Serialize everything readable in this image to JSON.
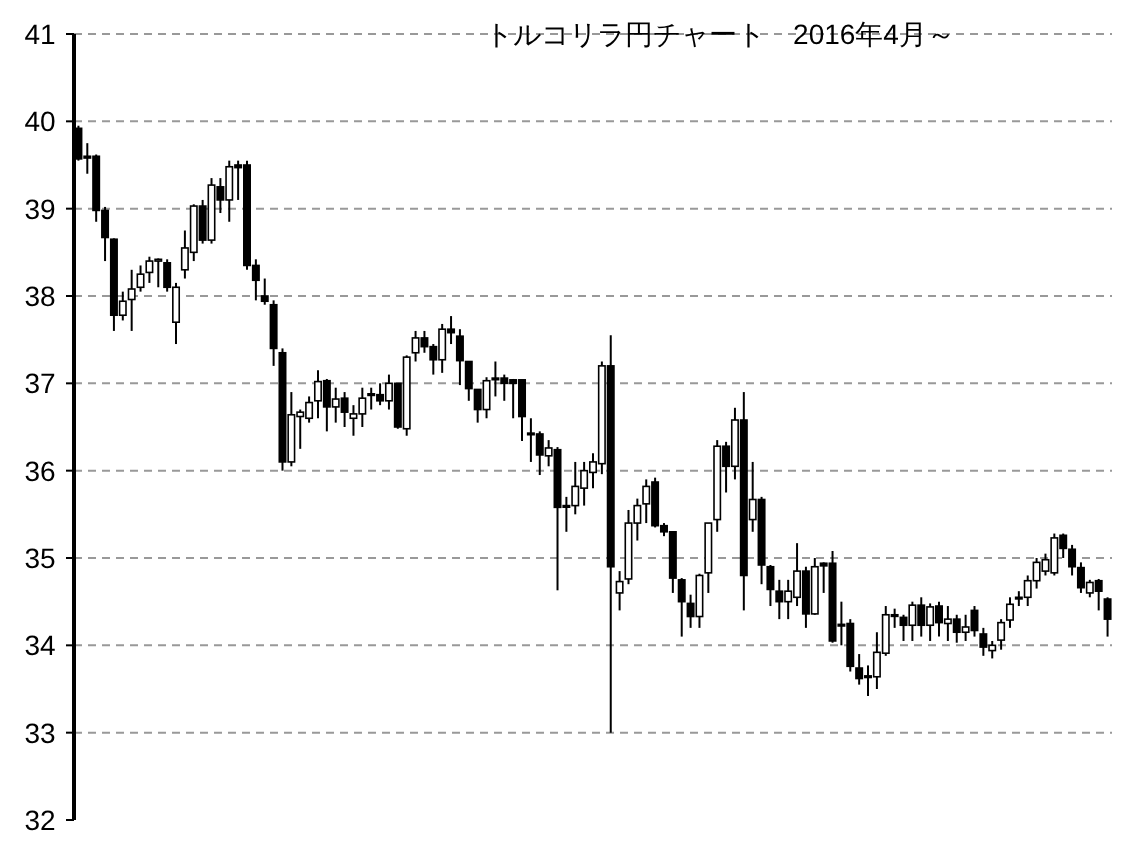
{
  "chart_data": {
    "type": "candlestick",
    "title": "トルコリラ円チャート　2016年4月～",
    "categories": [
      null,
      null,
      null,
      null,
      null,
      null,
      null,
      null,
      null,
      null,
      null,
      null,
      null,
      null,
      null,
      null,
      null,
      null,
      null,
      null,
      null,
      null,
      null,
      null,
      null,
      null,
      null,
      null,
      null,
      null,
      null,
      null,
      null,
      null,
      null,
      null,
      null,
      null,
      null,
      null,
      null,
      null,
      null,
      null,
      null,
      null,
      null,
      null,
      null,
      null,
      null,
      null,
      null,
      null,
      null,
      null,
      null,
      null,
      null,
      null,
      null,
      null,
      null,
      null,
      null,
      null,
      null,
      null,
      null,
      null,
      null,
      null,
      null,
      null,
      null,
      null,
      null,
      null,
      null,
      null,
      null,
      null,
      null,
      null,
      null,
      null,
      null,
      null,
      null,
      null,
      null,
      null,
      null,
      null,
      null,
      null,
      null,
      null,
      null,
      null,
      null,
      null,
      null,
      null,
      null,
      null,
      null,
      null,
      null,
      null,
      null,
      null,
      null,
      null,
      null,
      null,
      null
    ],
    "ohlc": [
      [
        39.92,
        39.95,
        39.55,
        39.57
      ],
      [
        39.6,
        39.75,
        39.4,
        39.58
      ],
      [
        39.6,
        39.62,
        38.85,
        38.98
      ],
      [
        38.98,
        39.02,
        38.4,
        38.67
      ],
      [
        38.65,
        38.66,
        37.6,
        37.78
      ],
      [
        37.78,
        38.05,
        37.72,
        37.94
      ],
      [
        37.96,
        38.3,
        37.6,
        38.08
      ],
      [
        38.1,
        38.35,
        38.05,
        38.25
      ],
      [
        38.27,
        38.45,
        38.15,
        38.4
      ],
      [
        38.4,
        38.43,
        38.1,
        38.42
      ],
      [
        38.38,
        38.42,
        38.05,
        38.1
      ],
      [
        37.7,
        38.15,
        37.45,
        38.1
      ],
      [
        38.3,
        38.75,
        38.2,
        38.55
      ],
      [
        38.5,
        39.05,
        38.4,
        39.03
      ],
      [
        39.03,
        39.1,
        38.6,
        38.64
      ],
      [
        38.64,
        39.35,
        38.6,
        39.27
      ],
      [
        39.25,
        39.35,
        38.95,
        39.1
      ],
      [
        39.1,
        39.55,
        38.85,
        39.48
      ],
      [
        39.5,
        39.55,
        39.1,
        39.47
      ],
      [
        39.5,
        39.55,
        38.3,
        38.35
      ],
      [
        38.35,
        38.42,
        37.95,
        38.18
      ],
      [
        38.0,
        38.2,
        37.9,
        37.94
      ],
      [
        37.9,
        37.95,
        37.2,
        37.4
      ],
      [
        37.35,
        37.4,
        36.0,
        36.1
      ],
      [
        36.1,
        36.9,
        36.05,
        36.64
      ],
      [
        36.62,
        36.7,
        36.25,
        36.67
      ],
      [
        36.6,
        36.85,
        36.55,
        36.78
      ],
      [
        36.8,
        37.15,
        36.6,
        37.02
      ],
      [
        37.03,
        37.05,
        36.45,
        36.73
      ],
      [
        36.73,
        36.95,
        36.55,
        36.82
      ],
      [
        36.83,
        36.9,
        36.5,
        36.67
      ],
      [
        36.6,
        36.75,
        36.4,
        36.65
      ],
      [
        36.65,
        36.95,
        36.5,
        36.83
      ],
      [
        36.87,
        36.95,
        36.7,
        36.88
      ],
      [
        36.87,
        37.0,
        36.75,
        36.8
      ],
      [
        36.8,
        37.1,
        36.7,
        37.0
      ],
      [
        37.0,
        37.0,
        36.48,
        36.5
      ],
      [
        36.48,
        37.32,
        36.4,
        37.3
      ],
      [
        37.35,
        37.6,
        37.25,
        37.52
      ],
      [
        37.52,
        37.6,
        37.35,
        37.42
      ],
      [
        37.42,
        37.45,
        37.1,
        37.27
      ],
      [
        37.27,
        37.68,
        37.12,
        37.62
      ],
      [
        37.62,
        37.77,
        37.45,
        37.58
      ],
      [
        37.54,
        37.62,
        36.98,
        37.26
      ],
      [
        37.25,
        37.25,
        36.8,
        36.94
      ],
      [
        36.93,
        36.93,
        36.55,
        36.7
      ],
      [
        36.7,
        37.07,
        36.6,
        37.03
      ],
      [
        37.05,
        37.25,
        36.85,
        37.06
      ],
      [
        37.06,
        37.1,
        36.8,
        37.0
      ],
      [
        37.04,
        37.05,
        36.6,
        37.0
      ],
      [
        37.04,
        37.04,
        36.34,
        36.62
      ],
      [
        36.43,
        36.6,
        36.1,
        36.42
      ],
      [
        36.42,
        36.45,
        35.95,
        36.18
      ],
      [
        36.17,
        36.35,
        36.05,
        36.26
      ],
      [
        36.24,
        36.27,
        34.63,
        35.58
      ],
      [
        35.6,
        35.7,
        35.3,
        35.6
      ],
      [
        35.6,
        36.1,
        35.5,
        35.82
      ],
      [
        35.8,
        36.1,
        35.6,
        36.0
      ],
      [
        35.98,
        36.2,
        35.8,
        36.1
      ],
      [
        36.08,
        37.25,
        35.96,
        37.2
      ],
      [
        37.2,
        37.55,
        33.0,
        34.9
      ],
      [
        34.6,
        34.85,
        34.4,
        34.73
      ],
      [
        34.76,
        35.55,
        34.7,
        35.4
      ],
      [
        35.4,
        35.68,
        35.2,
        35.6
      ],
      [
        35.62,
        35.9,
        35.4,
        35.82
      ],
      [
        35.87,
        35.92,
        35.35,
        35.37
      ],
      [
        35.37,
        35.4,
        35.25,
        35.3
      ],
      [
        35.3,
        35.3,
        34.6,
        34.77
      ],
      [
        34.75,
        34.77,
        34.1,
        34.5
      ],
      [
        34.48,
        34.58,
        34.2,
        34.33
      ],
      [
        34.33,
        34.82,
        34.2,
        34.8
      ],
      [
        34.83,
        35.4,
        34.6,
        35.4
      ],
      [
        35.44,
        36.35,
        35.3,
        36.28
      ],
      [
        36.28,
        36.33,
        35.75,
        36.05
      ],
      [
        36.05,
        36.72,
        35.9,
        36.58
      ],
      [
        36.58,
        36.9,
        34.4,
        34.8
      ],
      [
        35.44,
        36.1,
        35.3,
        35.67
      ],
      [
        35.67,
        35.7,
        34.7,
        34.92
      ],
      [
        34.9,
        34.92,
        34.45,
        34.64
      ],
      [
        34.62,
        34.75,
        34.3,
        34.5
      ],
      [
        34.5,
        34.75,
        34.3,
        34.62
      ],
      [
        34.55,
        35.17,
        34.45,
        34.85
      ],
      [
        34.85,
        34.9,
        34.2,
        34.36
      ],
      [
        34.36,
        35.0,
        34.35,
        34.9
      ],
      [
        34.94,
        34.95,
        34.6,
        34.91
      ],
      [
        34.94,
        35.08,
        34.03,
        34.05
      ],
      [
        34.24,
        34.5,
        34.0,
        34.23
      ],
      [
        34.25,
        34.3,
        33.7,
        33.76
      ],
      [
        33.74,
        33.9,
        33.55,
        33.62
      ],
      [
        33.65,
        33.77,
        33.42,
        33.64
      ],
      [
        33.64,
        34.15,
        33.5,
        33.92
      ],
      [
        33.91,
        34.45,
        33.88,
        34.35
      ],
      [
        34.35,
        34.42,
        34.2,
        34.34
      ],
      [
        34.32,
        34.35,
        34.05,
        34.23
      ],
      [
        34.23,
        34.5,
        34.05,
        34.46
      ],
      [
        34.46,
        34.55,
        34.1,
        34.23
      ],
      [
        34.23,
        34.48,
        34.05,
        34.44
      ],
      [
        34.45,
        34.5,
        34.1,
        34.26
      ],
      [
        34.25,
        34.45,
        34.05,
        34.3
      ],
      [
        34.3,
        34.35,
        34.03,
        34.15
      ],
      [
        34.15,
        34.35,
        34.05,
        34.21
      ],
      [
        34.4,
        34.45,
        34.1,
        34.17
      ],
      [
        34.13,
        34.2,
        33.88,
        33.98
      ],
      [
        33.94,
        34.05,
        33.85,
        34.0
      ],
      [
        34.06,
        34.3,
        33.95,
        34.26
      ],
      [
        34.29,
        34.55,
        34.2,
        34.47
      ],
      [
        34.55,
        34.62,
        34.45,
        34.55
      ],
      [
        34.55,
        34.8,
        34.45,
        34.74
      ],
      [
        34.74,
        35.0,
        34.65,
        34.95
      ],
      [
        34.85,
        35.05,
        34.8,
        34.98
      ],
      [
        34.83,
        35.28,
        34.8,
        35.23
      ],
      [
        35.26,
        35.28,
        35.0,
        35.11
      ],
      [
        35.1,
        35.15,
        34.8,
        34.9
      ],
      [
        34.89,
        34.95,
        34.6,
        34.66
      ],
      [
        34.6,
        34.75,
        34.55,
        34.72
      ],
      [
        34.74,
        34.76,
        34.4,
        34.62
      ],
      [
        34.53,
        34.55,
        34.1,
        34.3
      ]
    ],
    "ylim": [
      32,
      41
    ],
    "yticks": [
      32,
      33,
      34,
      35,
      36,
      37,
      38,
      39,
      40,
      41
    ],
    "grid": "y"
  }
}
